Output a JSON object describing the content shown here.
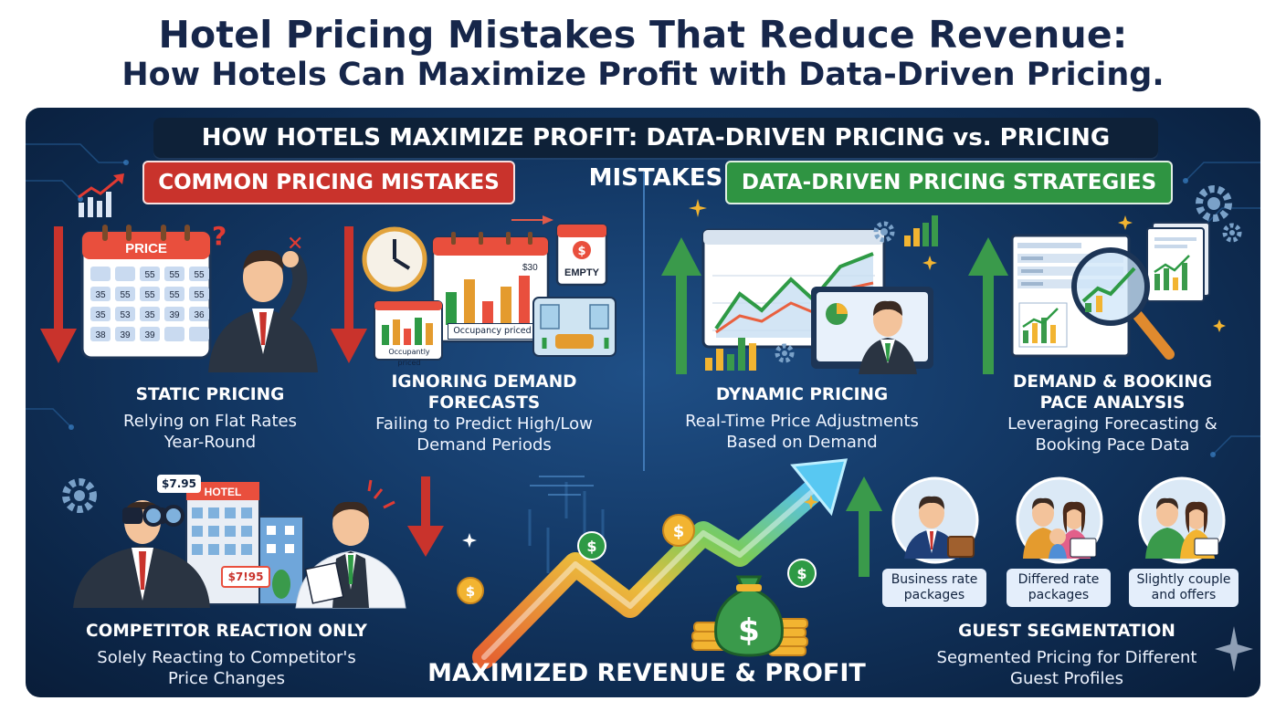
{
  "title_line1": "Hotel Pricing Mistakes That Reduce Revenue:",
  "title_line2": "How Hotels Can Maximize Profit with Data-Driven Pricing.",
  "banner": "HOW HOTELS MAXIMIZE PROFIT: DATA-DRIVEN PRICING vs. PRICING MISTAKES",
  "mistakes_header": "COMMON PRICING MISTAKES",
  "strategies_header": "DATA-DRIVEN PRICING STRATEGIES",
  "static": {
    "heading": "STATIC PRICING",
    "desc_line1": "Relying on Flat Rates",
    "desc_line2": "Year-Round",
    "calendar_title": "PRICE",
    "calendar_cells": [
      "",
      "",
      "55",
      "55",
      "55",
      "35",
      "55",
      "55",
      "55",
      "55",
      "35",
      "53",
      "35",
      "39",
      "36",
      "38",
      "39",
      "39",
      "",
      ""
    ]
  },
  "forecast": {
    "heading_line1": "IGNORING DEMAND",
    "heading_line2": "FORECASTS",
    "desc_line1": "Failing to Predict High/Low",
    "desc_line2": "Demand Periods",
    "price_tag": "$30",
    "empty_label": "EMPTY",
    "dollar": "$",
    "chart_caption_a": "Occupancy priced",
    "chart_caption_b": "Occupantly priced"
  },
  "dynamic": {
    "heading": "DYNAMIC PRICING",
    "desc_line1": "Real-Time Price Adjustments",
    "desc_line2": "Based on Demand"
  },
  "demand": {
    "heading_line1": "DEMAND & BOOKING",
    "heading_line2": "PACE ANALYSIS",
    "desc_line1": "Leveraging Forecasting &",
    "desc_line2": "Booking Pace Data"
  },
  "competitor": {
    "heading": "COMPETITOR REACTION ONLY",
    "desc_line1": "Solely Reacting to Competitor's",
    "desc_line2": "Price Changes",
    "price_tag_a": "$7.95",
    "price_tag_b": "$7!95",
    "hotel_sign": "HOTEL"
  },
  "center_caption": "MAXIMIZED REVENUE & PROFIT",
  "coin_symbol": "$",
  "segmentation": {
    "heading": "GUEST SEGMENTATION",
    "desc_line1": "Segmented Pricing for Different",
    "desc_line2": "Guest Profiles",
    "cap1_line1": "Business rate",
    "cap1_line2": "packages",
    "cap2_line1": "Differed rate",
    "cap2_line2": "packages",
    "cap3_line1": "Slightly couple",
    "cap3_line2": "and offers"
  },
  "colors": {
    "navy_title": "#16264a",
    "panel": "#143a68",
    "red": "#c9332c",
    "green": "#2f9442",
    "gold": "#f2b431"
  }
}
